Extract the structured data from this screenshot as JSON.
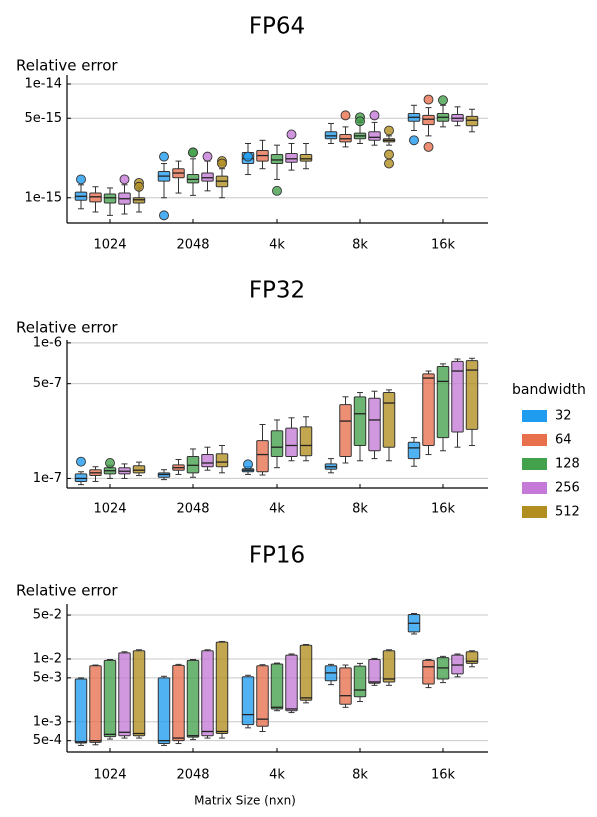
{
  "chart_data": [
    {
      "type": "box",
      "title": "FP64",
      "ylabel": "Relative error",
      "yscale": "log",
      "ylim": [
        6e-16,
        1.2e-14
      ],
      "yticks": [
        {
          "v": 1e-14,
          "label": "1e-14"
        },
        {
          "v": 5e-15,
          "label": "5e-15"
        },
        {
          "v": 1e-15,
          "label": "1e-15"
        }
      ],
      "categories": [
        "1024",
        "2048",
        "4k",
        "8k",
        "16k"
      ],
      "series": [
        {
          "name": "32",
          "boxes": [
            {
              "min": 8e-16,
              "q1": 9.5e-16,
              "med": 1.03e-15,
              "q3": 1.12e-15,
              "max": 1.3e-15,
              "outliers": [
                1.45e-15
              ]
            },
            {
              "min": 1e-15,
              "q1": 1.4e-15,
              "med": 1.55e-15,
              "q3": 1.7e-15,
              "max": 2e-15,
              "outliers": [
                2.3e-15,
                7e-16
              ]
            },
            {
              "min": 1.6e-15,
              "q1": 2e-15,
              "med": 2.2e-15,
              "q3": 2.5e-15,
              "max": 3e-15,
              "outliers": [
                2.3e-15
              ]
            },
            {
              "min": 3e-15,
              "q1": 3.3e-15,
              "med": 3.5e-15,
              "q3": 3.8e-15,
              "max": 4.5e-15,
              "outliers": []
            },
            {
              "min": 3.9e-15,
              "q1": 4.7e-15,
              "med": 5.1e-15,
              "q3": 5.5e-15,
              "max": 6.5e-15,
              "outliers": [
                3.2e-15
              ]
            }
          ]
        },
        {
          "name": "64",
          "boxes": [
            {
              "min": 7.5e-16,
              "q1": 9.2e-16,
              "med": 1.02e-15,
              "q3": 1.1e-15,
              "max": 1.25e-15,
              "outliers": []
            },
            {
              "min": 1.1e-15,
              "q1": 1.5e-15,
              "med": 1.65e-15,
              "q3": 1.8e-15,
              "max": 2.1e-15,
              "outliers": []
            },
            {
              "min": 1.8e-15,
              "q1": 2.1e-15,
              "med": 2.35e-15,
              "q3": 2.6e-15,
              "max": 3.2e-15,
              "outliers": []
            },
            {
              "min": 2.8e-15,
              "q1": 3.1e-15,
              "med": 3.3e-15,
              "q3": 3.6e-15,
              "max": 4.2e-15,
              "outliers": [
                5.3e-15
              ]
            },
            {
              "min": 3.5e-15,
              "q1": 4.4e-15,
              "med": 4.9e-15,
              "q3": 5.3e-15,
              "max": 6.2e-15,
              "outliers": [
                7.3e-15,
                2.8e-15
              ]
            }
          ]
        },
        {
          "name": "128",
          "boxes": [
            {
              "min": 7e-16,
              "q1": 9e-16,
              "med": 1e-15,
              "q3": 1.08e-15,
              "max": 1.22e-15,
              "outliers": []
            },
            {
              "min": 1.05e-15,
              "q1": 1.35e-15,
              "med": 1.45e-15,
              "q3": 1.6e-15,
              "max": 2.2e-15,
              "outliers": [
                2.5e-15,
                2.5e-15
              ]
            },
            {
              "min": 1.45e-15,
              "q1": 2e-15,
              "med": 2.15e-15,
              "q3": 2.4e-15,
              "max": 2.9e-15,
              "outliers": [
                1.15e-15
              ]
            },
            {
              "min": 3e-15,
              "q1": 3.3e-15,
              "med": 3.5e-15,
              "q3": 3.7e-15,
              "max": 4.6e-15,
              "outliers": [
                5.1e-15,
                4.7e-15
              ]
            },
            {
              "min": 4.2e-15,
              "q1": 4.7e-15,
              "med": 5.1e-15,
              "q3": 5.5e-15,
              "max": 6.5e-15,
              "outliers": [
                7.2e-15
              ]
            }
          ]
        },
        {
          "name": "256",
          "boxes": [
            {
              "min": 7.2e-16,
              "q1": 8.8e-16,
              "med": 9.8e-16,
              "q3": 1.1e-15,
              "max": 1.3e-15,
              "outliers": [
                1.45e-15
              ]
            },
            {
              "min": 1.15e-15,
              "q1": 1.4e-15,
              "med": 1.5e-15,
              "q3": 1.65e-15,
              "max": 2.1e-15,
              "outliers": [
                2.3e-15
              ]
            },
            {
              "min": 1.75e-15,
              "q1": 2.05e-15,
              "med": 2.2e-15,
              "q3": 2.45e-15,
              "max": 3e-15,
              "outliers": [
                3.6e-15
              ]
            },
            {
              "min": 2.9e-15,
              "q1": 3.2e-15,
              "med": 3.4e-15,
              "q3": 3.8e-15,
              "max": 4.6e-15,
              "outliers": [
                5.3e-15
              ]
            },
            {
              "min": 4.3e-15,
              "q1": 4.7e-15,
              "med": 5e-15,
              "q3": 5.4e-15,
              "max": 6.3e-15,
              "outliers": []
            }
          ]
        },
        {
          "name": "512",
          "boxes": [
            {
              "min": 7.5e-16,
              "q1": 9e-16,
              "med": 9.6e-16,
              "q3": 1e-15,
              "max": 1.2e-15,
              "outliers": [
                1.35e-15,
                1.25e-15
              ]
            },
            {
              "min": 1e-15,
              "q1": 1.25e-15,
              "med": 1.4e-15,
              "q3": 1.55e-15,
              "max": 1.8e-15,
              "outliers": [
                2.1e-15,
                2e-15
              ]
            },
            {
              "min": 1.8e-15,
              "q1": 2.1e-15,
              "med": 2.2e-15,
              "q3": 2.4e-15,
              "max": 3e-15,
              "outliers": []
            },
            {
              "min": 2.9e-15,
              "q1": 3.1e-15,
              "med": 3.2e-15,
              "q3": 3.3e-15,
              "max": 3.5e-15,
              "outliers": [
                3.9e-15,
                2.4e-15,
                2e-15
              ]
            },
            {
              "min": 3.8e-15,
              "q1": 4.3e-15,
              "med": 4.8e-15,
              "q3": 5.2e-15,
              "max": 6e-15,
              "outliers": []
            }
          ]
        }
      ]
    },
    {
      "type": "box",
      "title": "FP32",
      "ylabel": "Relative error",
      "yscale": "log",
      "ylim": [
        8.5e-08,
        1.05e-06
      ],
      "yticks": [
        {
          "v": 1e-06,
          "label": "1e-6"
        },
        {
          "v": 5e-07,
          "label": "5e-7"
        },
        {
          "v": 1e-07,
          "label": "1e-7"
        }
      ],
      "categories": [
        "1024",
        "2048",
        "4k",
        "8k",
        "16k"
      ],
      "series": [
        {
          "name": "32",
          "boxes": [
            {
              "min": 9e-08,
              "q1": 9.5e-08,
              "med": 1e-07,
              "q3": 1.08e-07,
              "max": 1.12e-07,
              "outliers": [
                1.33e-07
              ]
            },
            {
              "min": 9.8e-08,
              "q1": 1.02e-07,
              "med": 1.07e-07,
              "q3": 1.1e-07,
              "max": 1.16e-07,
              "outliers": []
            },
            {
              "min": 1.07e-07,
              "q1": 1.12e-07,
              "med": 1.15e-07,
              "q3": 1.18e-07,
              "max": 1.22e-07,
              "outliers": [
                1.27e-07
              ]
            },
            {
              "min": 1.1e-07,
              "q1": 1.17e-07,
              "med": 1.22e-07,
              "q3": 1.28e-07,
              "max": 1.4e-07,
              "outliers": []
            },
            {
              "min": 1.23e-07,
              "q1": 1.4e-07,
              "med": 1.68e-07,
              "q3": 1.85e-07,
              "max": 2e-07,
              "outliers": []
            }
          ]
        },
        {
          "name": "64",
          "boxes": [
            {
              "min": 9.5e-08,
              "q1": 1.05e-07,
              "med": 1.1e-07,
              "q3": 1.16e-07,
              "max": 1.22e-07,
              "outliers": []
            },
            {
              "min": 1.07e-07,
              "q1": 1.15e-07,
              "med": 1.2e-07,
              "q3": 1.26e-07,
              "max": 1.38e-07,
              "outliers": []
            },
            {
              "min": 1.06e-07,
              "q1": 1.12e-07,
              "med": 1.5e-07,
              "q3": 1.9e-07,
              "max": 2.5e-07,
              "outliers": []
            },
            {
              "min": 1.3e-07,
              "q1": 1.45e-07,
              "med": 2.65e-07,
              "q3": 3.5e-07,
              "max": 4e-07,
              "outliers": []
            },
            {
              "min": 1.5e-07,
              "q1": 1.75e-07,
              "med": 5.5e-07,
              "q3": 5.9e-07,
              "max": 6.2e-07,
              "outliers": []
            }
          ]
        },
        {
          "name": "128",
          "boxes": [
            {
              "min": 1e-07,
              "q1": 1.08e-07,
              "med": 1.14e-07,
              "q3": 1.2e-07,
              "max": 1.25e-07,
              "outliers": [
                1.3e-07
              ]
            },
            {
              "min": 1.02e-07,
              "q1": 1.1e-07,
              "med": 1.25e-07,
              "q3": 1.45e-07,
              "max": 1.65e-07,
              "outliers": []
            },
            {
              "min": 1.2e-07,
              "q1": 1.45e-07,
              "med": 1.7e-07,
              "q3": 2.25e-07,
              "max": 2.7e-07,
              "outliers": []
            },
            {
              "min": 1.35e-07,
              "q1": 1.75e-07,
              "med": 3e-07,
              "q3": 4e-07,
              "max": 4.3e-07,
              "outliers": []
            },
            {
              "min": 1.6e-07,
              "q1": 2e-07,
              "med": 5.2e-07,
              "q3": 6.7e-07,
              "max": 7e-07,
              "outliers": []
            }
          ]
        },
        {
          "name": "256",
          "boxes": [
            {
              "min": 1e-07,
              "q1": 1.08e-07,
              "med": 1.13e-07,
              "q3": 1.2e-07,
              "max": 1.28e-07,
              "outliers": []
            },
            {
              "min": 1.15e-07,
              "q1": 1.22e-07,
              "med": 1.3e-07,
              "q3": 1.5e-07,
              "max": 1.7e-07,
              "outliers": []
            },
            {
              "min": 1.35e-07,
              "q1": 1.45e-07,
              "med": 1.75e-07,
              "q3": 2.35e-07,
              "max": 2.8e-07,
              "outliers": []
            },
            {
              "min": 1.4e-07,
              "q1": 1.6e-07,
              "med": 2.7e-07,
              "q3": 3.9e-07,
              "max": 4.4e-07,
              "outliers": []
            },
            {
              "min": 1.7e-07,
              "q1": 2.2e-07,
              "med": 6.2e-07,
              "q3": 7.3e-07,
              "max": 7.6e-07,
              "outliers": []
            }
          ]
        },
        {
          "name": "512",
          "boxes": [
            {
              "min": 1.05e-07,
              "q1": 1.1e-07,
              "med": 1.15e-07,
              "q3": 1.24e-07,
              "max": 1.32e-07,
              "outliers": []
            },
            {
              "min": 1.1e-07,
              "q1": 1.22e-07,
              "med": 1.32e-07,
              "q3": 1.52e-07,
              "max": 1.75e-07,
              "outliers": []
            },
            {
              "min": 1.35e-07,
              "q1": 1.47e-07,
              "med": 1.75e-07,
              "q3": 2.4e-07,
              "max": 2.85e-07,
              "outliers": []
            },
            {
              "min": 1.35e-07,
              "q1": 1.7e-07,
              "med": 3.6e-07,
              "q3": 4.3e-07,
              "max": 4.5e-07,
              "outliers": []
            },
            {
              "min": 1.75e-07,
              "q1": 2.3e-07,
              "med": 6.3e-07,
              "q3": 7.4e-07,
              "max": 7.7e-07,
              "outliers": []
            }
          ]
        }
      ]
    },
    {
      "type": "box",
      "title": "FP16",
      "ylabel": "Relative error",
      "yscale": "log",
      "ylim": [
        0.00033,
        0.075
      ],
      "yticks": [
        {
          "v": 0.05,
          "label": "5e-2"
        },
        {
          "v": 0.01,
          "label": "1e-2"
        },
        {
          "v": 0.005,
          "label": "5e-3"
        },
        {
          "v": 0.001,
          "label": "1e-3"
        },
        {
          "v": 0.0005,
          "label": "5e-4"
        }
      ],
      "xlabel": "Matrix Size (nxn)",
      "categories": [
        "1024",
        "2048",
        "4k",
        "8k",
        "16k"
      ],
      "series": [
        {
          "name": "32",
          "boxes": [
            {
              "min": 0.00042,
              "q1": 0.00046,
              "med": 0.00048,
              "q3": 0.0048,
              "max": 0.005,
              "outliers": []
            },
            {
              "min": 0.00042,
              "q1": 0.00045,
              "med": 0.0005,
              "q3": 0.005,
              "max": 0.0053,
              "outliers": []
            },
            {
              "min": 0.0008,
              "q1": 0.0009,
              "med": 0.0013,
              "q3": 0.0052,
              "max": 0.0055,
              "outliers": []
            },
            {
              "min": 0.0039,
              "q1": 0.0045,
              "med": 0.006,
              "q3": 0.0078,
              "max": 0.0082,
              "outliers": []
            },
            {
              "min": 0.025,
              "q1": 0.027,
              "med": 0.037,
              "q3": 0.051,
              "max": 0.053,
              "outliers": []
            }
          ]
        },
        {
          "name": "64",
          "boxes": [
            {
              "min": 0.00043,
              "q1": 0.00047,
              "med": 0.0005,
              "q3": 0.0078,
              "max": 0.008,
              "outliers": []
            },
            {
              "min": 0.00045,
              "q1": 0.0005,
              "med": 0.00055,
              "q3": 0.0079,
              "max": 0.0082,
              "outliers": []
            },
            {
              "min": 0.0007,
              "q1": 0.00085,
              "med": 0.0011,
              "q3": 0.0078,
              "max": 0.0081,
              "outliers": []
            },
            {
              "min": 0.0017,
              "q1": 0.0019,
              "med": 0.0026,
              "q3": 0.0072,
              "max": 0.008,
              "outliers": []
            },
            {
              "min": 0.0035,
              "q1": 0.004,
              "med": 0.0075,
              "q3": 0.0095,
              "max": 0.0098,
              "outliers": []
            }
          ]
        },
        {
          "name": "128",
          "boxes": [
            {
              "min": 0.00053,
              "q1": 0.00058,
              "med": 0.00063,
              "q3": 0.0095,
              "max": 0.0098,
              "outliers": []
            },
            {
              "min": 0.00052,
              "q1": 0.00057,
              "med": 0.0006,
              "q3": 0.0095,
              "max": 0.0098,
              "outliers": []
            },
            {
              "min": 0.0015,
              "q1": 0.0016,
              "med": 0.0017,
              "q3": 0.0083,
              "max": 0.0086,
              "outliers": []
            },
            {
              "min": 0.0021,
              "q1": 0.0025,
              "med": 0.0032,
              "q3": 0.0077,
              "max": 0.0085,
              "outliers": []
            },
            {
              "min": 0.0042,
              "q1": 0.0048,
              "med": 0.0072,
              "q3": 0.0105,
              "max": 0.011,
              "outliers": []
            }
          ]
        },
        {
          "name": "256",
          "boxes": [
            {
              "min": 0.00055,
              "q1": 0.0006,
              "med": 0.00068,
              "q3": 0.0125,
              "max": 0.013,
              "outliers": []
            },
            {
              "min": 0.00055,
              "q1": 0.0006,
              "med": 0.0007,
              "q3": 0.0135,
              "max": 0.014,
              "outliers": []
            },
            {
              "min": 0.0014,
              "q1": 0.0015,
              "med": 0.0016,
              "q3": 0.0115,
              "max": 0.012,
              "outliers": []
            },
            {
              "min": 0.0038,
              "q1": 0.0041,
              "med": 0.0043,
              "q3": 0.0098,
              "max": 0.0102,
              "outliers": []
            },
            {
              "min": 0.0052,
              "q1": 0.0058,
              "med": 0.008,
              "q3": 0.0115,
              "max": 0.012,
              "outliers": []
            }
          ]
        },
        {
          "name": "512",
          "boxes": [
            {
              "min": 0.00055,
              "q1": 0.0006,
              "med": 0.00065,
              "q3": 0.0135,
              "max": 0.014,
              "outliers": []
            },
            {
              "min": 0.00055,
              "q1": 0.00065,
              "med": 0.0007,
              "q3": 0.0185,
              "max": 0.019,
              "outliers": []
            },
            {
              "min": 0.002,
              "q1": 0.0022,
              "med": 0.0024,
              "q3": 0.0165,
              "max": 0.017,
              "outliers": []
            },
            {
              "min": 0.0038,
              "q1": 0.0043,
              "med": 0.0048,
              "q3": 0.0135,
              "max": 0.014,
              "outliers": []
            },
            {
              "min": 0.0075,
              "q1": 0.0085,
              "med": 0.0092,
              "q3": 0.013,
              "max": 0.0135,
              "outliers": []
            }
          ]
        }
      ]
    }
  ],
  "legend": {
    "title": "bandwidth",
    "placement": "right",
    "items": [
      {
        "label": "32",
        "color": "#1f9bf0"
      },
      {
        "label": "64",
        "color": "#e8704d"
      },
      {
        "label": "128",
        "color": "#43a04b"
      },
      {
        "label": "256",
        "color": "#c47ad6"
      },
      {
        "label": "512",
        "color": "#b18e1f"
      }
    ]
  }
}
